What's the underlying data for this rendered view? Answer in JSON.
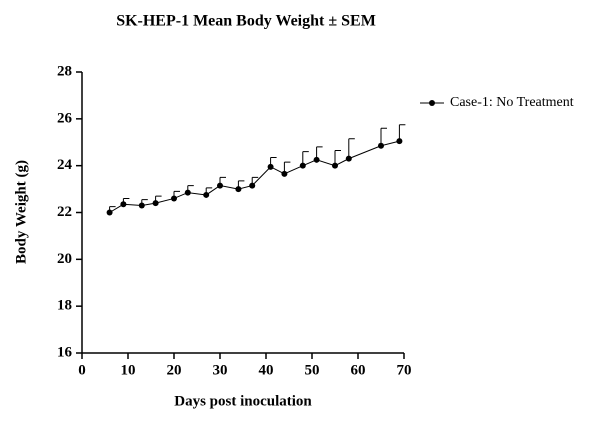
{
  "chart_data": {
    "type": "line",
    "title": "SK-HEP-1 Mean Body Weight ± SEM",
    "x_label": "Days post inoculation",
    "y_label": "Body Weight (g)",
    "xlim": [
      0,
      70
    ],
    "xticks": [
      0,
      10,
      20,
      30,
      40,
      50,
      60,
      70
    ],
    "ylim": [
      16,
      28
    ],
    "yticks": [
      16,
      18,
      20,
      22,
      24,
      26,
      28
    ],
    "grid": false,
    "legend": "right",
    "x": [
      6,
      9,
      13,
      16,
      20,
      23,
      27,
      30,
      34,
      37,
      41,
      44,
      48,
      51,
      55,
      58,
      65,
      69
    ],
    "series": [
      {
        "name": "Case-1: No Treatment",
        "color": "#000000",
        "values": [
          22.0,
          22.35,
          22.3,
          22.4,
          22.6,
          22.85,
          22.75,
          23.15,
          23.0,
          23.15,
          23.95,
          23.65,
          24.0,
          24.25,
          24.0,
          24.3,
          24.85,
          25.05
        ],
        "errors": [
          0.25,
          0.25,
          0.25,
          0.3,
          0.3,
          0.3,
          0.3,
          0.35,
          0.35,
          0.35,
          0.4,
          0.5,
          0.6,
          0.55,
          0.65,
          0.85,
          0.75,
          0.7
        ]
      }
    ]
  }
}
